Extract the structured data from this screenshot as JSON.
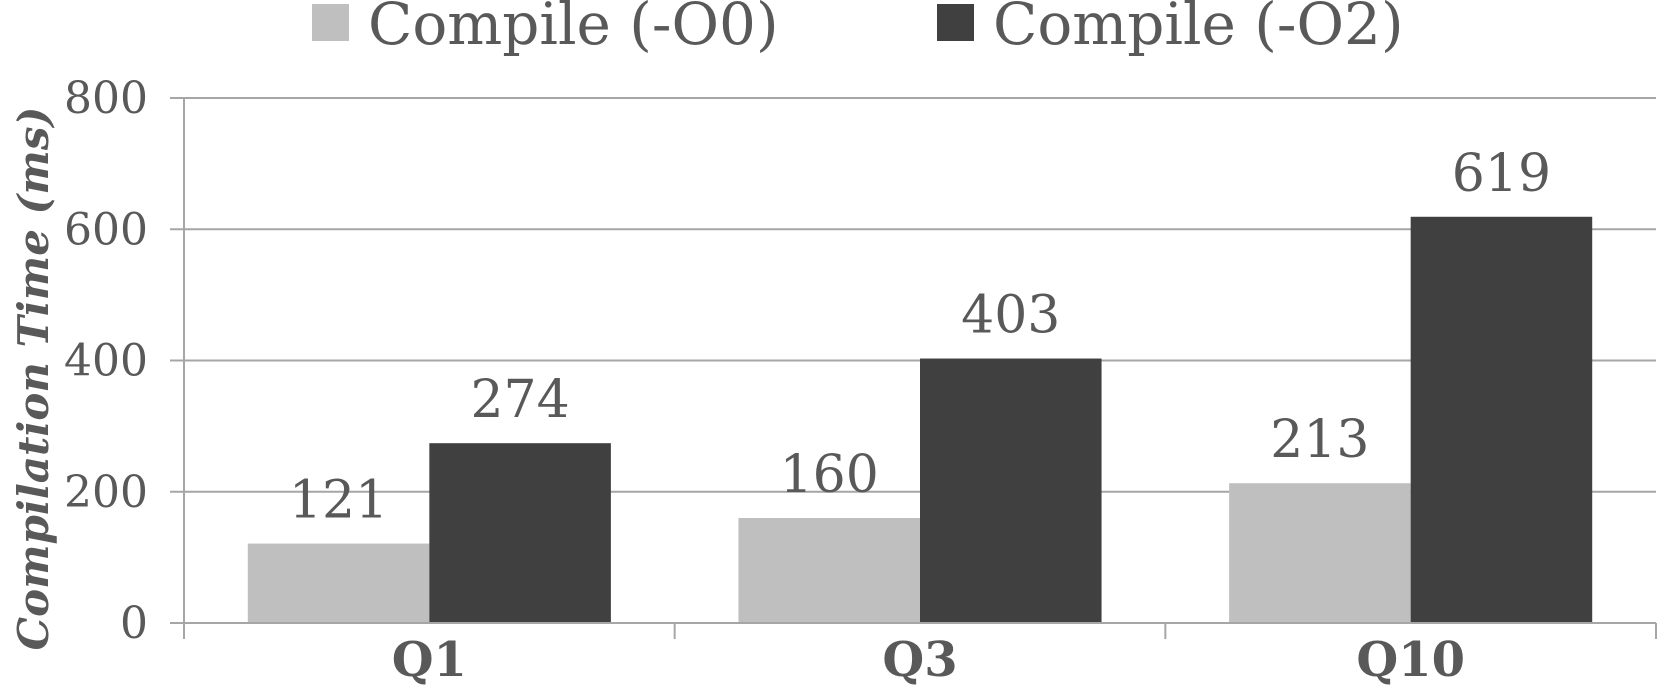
{
  "chart_data": {
    "type": "bar",
    "categories": [
      "Q1",
      "Q3",
      "Q10"
    ],
    "series": [
      {
        "name": "Compile (-O0)",
        "values": [
          121,
          160,
          213
        ],
        "color": "#bfbfbf"
      },
      {
        "name": "Compile (-O2)",
        "values": [
          274,
          403,
          619
        ],
        "color": "#404040"
      }
    ],
    "title": "",
    "xlabel": "",
    "ylabel": "Compilation Time (ms)",
    "ylim": [
      0,
      800
    ],
    "yticks": [
      0,
      200,
      400,
      600,
      800
    ],
    "grid": true,
    "legend": "top"
  },
  "colors": {
    "grid": "#a6a6a6",
    "axis": "#a6a6a6",
    "text": "#595959"
  }
}
